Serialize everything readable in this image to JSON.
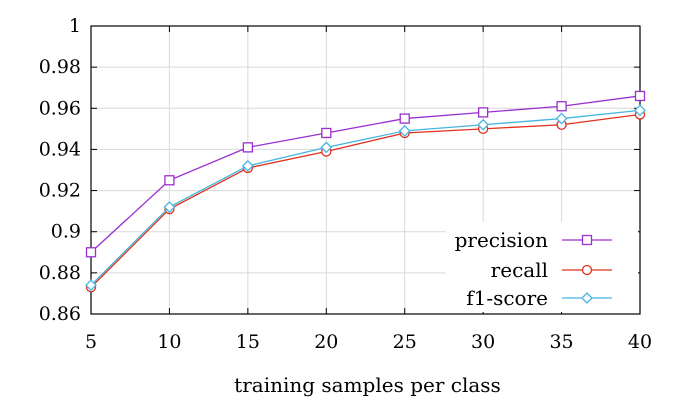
{
  "chart_data": {
    "type": "line",
    "title": "",
    "xlabel": "training samples per class",
    "ylabel": "",
    "x": [
      5,
      10,
      15,
      20,
      25,
      30,
      35,
      40
    ],
    "xlim": [
      5,
      40
    ],
    "ylim": [
      0.86,
      1.0
    ],
    "xticks": [
      "5",
      "10",
      "15",
      "20",
      "25",
      "30",
      "35",
      "40"
    ],
    "yticks": [
      "0.86",
      "0.88",
      "0.9",
      "0.92",
      "0.94",
      "0.96",
      "0.98",
      "1"
    ],
    "grid": true,
    "legend_position": "bottom-right",
    "series": [
      {
        "name": "precision",
        "color": "#9a2fd1",
        "marker": "square",
        "values": [
          0.89,
          0.925,
          0.941,
          0.948,
          0.955,
          0.958,
          0.961,
          0.966
        ]
      },
      {
        "name": "recall",
        "color": "#e0301e",
        "marker": "circle",
        "values": [
          0.873,
          0.911,
          0.931,
          0.939,
          0.948,
          0.95,
          0.952,
          0.957
        ]
      },
      {
        "name": "f1-score",
        "color": "#45b6e0",
        "marker": "diamond",
        "values": [
          0.874,
          0.912,
          0.932,
          0.941,
          0.949,
          0.952,
          0.955,
          0.959
        ]
      }
    ]
  }
}
